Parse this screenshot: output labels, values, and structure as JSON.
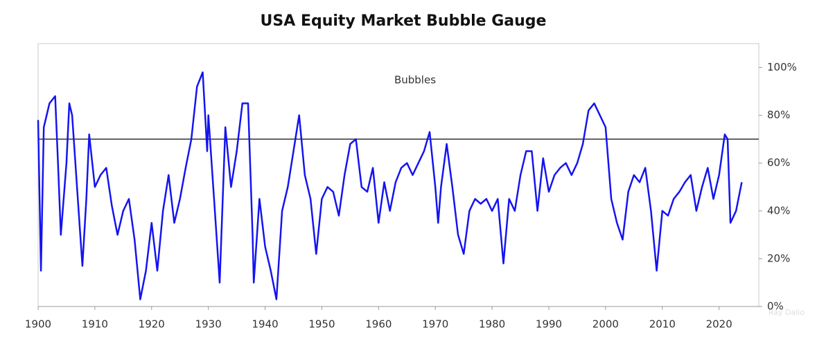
{
  "chart_data": {
    "type": "line",
    "title": "USA Equity Market Bubble Gauge",
    "annotation": "Bubbles",
    "watermark": "Ray Dalio",
    "x": [
      1900,
      1900.5,
      1901,
      1902,
      1903,
      1903.5,
      1904,
      1905,
      1905.5,
      1906,
      1907,
      1907.8,
      1908.5,
      1909,
      1910,
      1911,
      1912,
      1913,
      1914,
      1915,
      1916,
      1917,
      1918,
      1919,
      1920,
      1921,
      1922,
      1923,
      1924,
      1925,
      1926,
      1927,
      1928,
      1929,
      1929.8,
      1930,
      1931,
      1932,
      1933,
      1934,
      1935,
      1936,
      1937,
      1937.8,
      1938,
      1939,
      1940,
      1941,
      1942,
      1943,
      1944,
      1945,
      1946,
      1947,
      1948,
      1949,
      1950,
      1951,
      1952,
      1953,
      1954,
      1955,
      1956,
      1957,
      1958,
      1959,
      1960,
      1961,
      1962,
      1963,
      1964,
      1965,
      1966,
      1967,
      1968,
      1969,
      1970,
      1970.5,
      1971,
      1972,
      1973,
      1974,
      1975,
      1976,
      1977,
      1978,
      1979,
      1980,
      1981,
      1982,
      1983,
      1984,
      1985,
      1986,
      1987,
      1988,
      1989,
      1990,
      1991,
      1992,
      1993,
      1994,
      1995,
      1996,
      1997,
      1998,
      1999,
      2000,
      2001,
      2002,
      2003,
      2004,
      2005,
      2006,
      2007,
      2008,
      2009,
      2010,
      2011,
      2012,
      2013,
      2014,
      2015,
      2016,
      2017,
      2018,
      2019,
      2020,
      2021,
      2021.5,
      2022,
      2023,
      2024
    ],
    "values": [
      78,
      15,
      75,
      85,
      88,
      60,
      30,
      60,
      85,
      80,
      45,
      17,
      45,
      72,
      50,
      55,
      58,
      42,
      30,
      40,
      45,
      28,
      3,
      15,
      35,
      15,
      40,
      55,
      35,
      45,
      58,
      70,
      92,
      98,
      65,
      80,
      45,
      10,
      75,
      50,
      65,
      85,
      85,
      30,
      10,
      45,
      25,
      15,
      3,
      40,
      50,
      65,
      80,
      55,
      45,
      22,
      45,
      50,
      48,
      38,
      55,
      68,
      70,
      50,
      48,
      58,
      35,
      52,
      40,
      52,
      58,
      60,
      55,
      60,
      65,
      73,
      50,
      35,
      50,
      68,
      50,
      30,
      22,
      40,
      45,
      43,
      45,
      40,
      45,
      18,
      45,
      40,
      55,
      65,
      65,
      40,
      62,
      48,
      55,
      58,
      60,
      55,
      60,
      68,
      82,
      85,
      80,
      75,
      45,
      35,
      28,
      48,
      55,
      52,
      58,
      40,
      15,
      40,
      38,
      45,
      48,
      52,
      55,
      40,
      50,
      58,
      45,
      55,
      72,
      70,
      35,
      40,
      52
    ],
    "color": "#1414f0",
    "threshold": 70,
    "threshold_color": "#333333",
    "xlim": [
      1900,
      2027
    ],
    "xticks": [
      1900,
      1910,
      1920,
      1930,
      1940,
      1950,
      1960,
      1970,
      1980,
      1990,
      2000,
      2010,
      2020
    ],
    "ylim": [
      0,
      110
    ],
    "yticks": [
      {
        "value": 0,
        "label": "0%"
      },
      {
        "value": 20,
        "label": "20%"
      },
      {
        "value": 40,
        "label": "40%"
      },
      {
        "value": 60,
        "label": "60%"
      },
      {
        "value": 80,
        "label": "80%"
      },
      {
        "value": 100,
        "label": "100%"
      }
    ],
    "grid": false
  }
}
